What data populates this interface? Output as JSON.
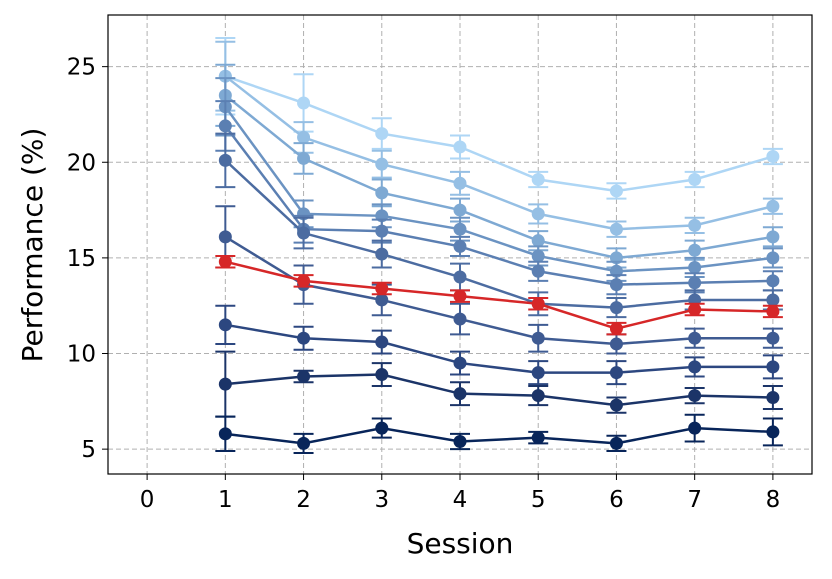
{
  "chart_data": {
    "type": "line",
    "x_label": "Session",
    "y_label": "Performance (%)",
    "x": [
      1,
      2,
      3,
      4,
      5,
      6,
      7,
      8
    ],
    "xlim": [
      -0.5,
      8.5
    ],
    "xticks": [
      0,
      1,
      2,
      3,
      4,
      5,
      6,
      7,
      8
    ],
    "ylim": [
      3.7,
      27.7
    ],
    "yticks": [
      5,
      10,
      15,
      20,
      25
    ],
    "grid": true,
    "series": [
      {
        "color": "#aed6f5",
        "values": [
          24.5,
          23.1,
          21.5,
          20.8,
          19.1,
          18.5,
          19.1,
          20.3
        ],
        "errors": [
          2.0,
          1.5,
          0.8,
          0.6,
          0.4,
          0.4,
          0.4,
          0.4
        ]
      },
      {
        "color": "#95bfe4",
        "values": [
          24.5,
          21.3,
          19.9,
          18.9,
          17.3,
          16.5,
          16.7,
          17.7
        ],
        "errors": [
          1.8,
          0.8,
          0.7,
          0.6,
          0.5,
          0.4,
          0.4,
          0.4
        ]
      },
      {
        "color": "#7ea9d3",
        "values": [
          23.5,
          20.2,
          18.4,
          17.5,
          15.9,
          15.0,
          15.4,
          16.1
        ],
        "errors": [
          1.6,
          0.8,
          0.7,
          0.6,
          0.5,
          0.5,
          0.5,
          0.5
        ]
      },
      {
        "color": "#6b93c2",
        "values": [
          22.9,
          17.3,
          17.2,
          16.5,
          15.1,
          14.3,
          14.5,
          15.0
        ],
        "errors": [
          1.5,
          0.7,
          0.6,
          0.6,
          0.5,
          0.5,
          0.5,
          0.5
        ]
      },
      {
        "color": "#5b7fb2",
        "values": [
          21.9,
          16.5,
          16.4,
          15.6,
          14.3,
          13.6,
          13.7,
          13.8
        ],
        "errors": [
          1.3,
          0.7,
          0.6,
          0.5,
          0.5,
          0.5,
          0.5,
          0.5
        ]
      },
      {
        "color": "#4c6ca1",
        "values": [
          20.1,
          16.3,
          15.2,
          14.0,
          12.6,
          12.4,
          12.8,
          12.8
        ],
        "errors": [
          1.4,
          0.8,
          0.7,
          0.7,
          0.6,
          0.5,
          0.5,
          0.5
        ]
      },
      {
        "color": "#3f5b92",
        "values": [
          16.1,
          13.6,
          12.8,
          11.8,
          10.8,
          10.5,
          10.8,
          10.8
        ],
        "errors": [
          1.6,
          1.0,
          0.8,
          0.8,
          0.7,
          0.5,
          0.5,
          0.5
        ]
      },
      {
        "color": "#2c4780",
        "values": [
          11.5,
          10.8,
          10.6,
          9.5,
          9.0,
          9.0,
          9.3,
          9.3
        ],
        "errors": [
          1.0,
          0.6,
          0.6,
          0.6,
          0.6,
          0.6,
          0.5,
          0.6
        ]
      },
      {
        "color": "#1b3468",
        "values": [
          8.4,
          8.8,
          8.9,
          7.9,
          7.8,
          7.3,
          7.8,
          7.7
        ],
        "errors": [
          1.7,
          0.3,
          0.6,
          0.6,
          0.5,
          0.4,
          0.4,
          0.6
        ]
      },
      {
        "color": "#08255a",
        "values": [
          5.8,
          5.3,
          6.1,
          5.4,
          5.6,
          5.3,
          6.1,
          5.9
        ],
        "errors": [
          0.9,
          0.5,
          0.5,
          0.4,
          0.3,
          0.4,
          0.7,
          0.7
        ]
      },
      {
        "color": "#d62728",
        "values": [
          14.8,
          13.8,
          13.4,
          13.0,
          12.6,
          11.3,
          12.3,
          12.2
        ],
        "errors": [
          0.3,
          0.3,
          0.3,
          0.3,
          0.3,
          0.3,
          0.3,
          0.3
        ]
      }
    ]
  }
}
